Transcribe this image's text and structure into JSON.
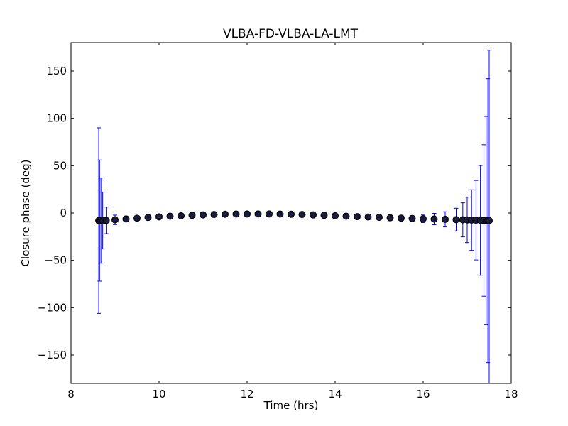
{
  "chart_data": {
    "type": "scatter",
    "title": "VLBA-FD-VLBA-LA-LMT",
    "xlabel": "Time (hrs)",
    "ylabel": "Closure phase (deg)",
    "xlim": [
      8,
      18
    ],
    "ylim": [
      -180,
      180
    ],
    "xticks": [
      8,
      10,
      12,
      14,
      16,
      18
    ],
    "yticks": [
      -150,
      -100,
      -50,
      0,
      50,
      100,
      150
    ],
    "xtick_labels": [
      "8",
      "10",
      "12",
      "14",
      "16",
      "18"
    ],
    "ytick_labels": [
      "−150",
      "−100",
      "−50",
      "0",
      "50",
      "100",
      "150"
    ],
    "grid": false,
    "colors": {
      "errorbar": "#0000ff",
      "marker": "#000000",
      "marker_fill": "#1a1a3a"
    },
    "series": [
      {
        "x": [
          8.63,
          8.65,
          8.68,
          8.72,
          8.8,
          9.0,
          9.25,
          9.5,
          9.75,
          10.0,
          10.25,
          10.5,
          10.75,
          11.0,
          11.25,
          11.5,
          11.75,
          12.0,
          12.25,
          12.5,
          12.75,
          13.0,
          13.25,
          13.5,
          13.75,
          14.0,
          14.25,
          14.5,
          14.75,
          15.0,
          15.25,
          15.5,
          15.75,
          16.0,
          16.25,
          16.5,
          16.75,
          16.9,
          17.0,
          17.1,
          17.2,
          17.3,
          17.38,
          17.43,
          17.47,
          17.5
        ],
        "y": [
          -8,
          -8,
          -8,
          -7.9,
          -7.8,
          -7.2,
          -6.3,
          -5.5,
          -4.7,
          -4.0,
          -3.4,
          -2.9,
          -2.4,
          -2.0,
          -1.6,
          -1.3,
          -1.1,
          -1.0,
          -1.0,
          -1.0,
          -1.1,
          -1.3,
          -1.6,
          -2.0,
          -2.4,
          -2.9,
          -3.4,
          -3.8,
          -4.2,
          -4.6,
          -5.0,
          -5.4,
          -5.8,
          -6.1,
          -6.4,
          -6.7,
          -7.0,
          -7.2,
          -7.3,
          -7.5,
          -7.6,
          -7.8,
          -7.9,
          -8.0,
          -8.0,
          -8.0
        ],
        "yerr": [
          98,
          64,
          45,
          30,
          14,
          5,
          3,
          2.5,
          2,
          1.8,
          1.5,
          1.3,
          1.2,
          1.1,
          1,
          1,
          1,
          1,
          1,
          1,
          1,
          1,
          1,
          1,
          1,
          1.1,
          1.2,
          1.3,
          1.5,
          1.8,
          2,
          2.5,
          3,
          4,
          6,
          8,
          12,
          18,
          24,
          32,
          42,
          58,
          80,
          110,
          150,
          180
        ]
      }
    ]
  }
}
